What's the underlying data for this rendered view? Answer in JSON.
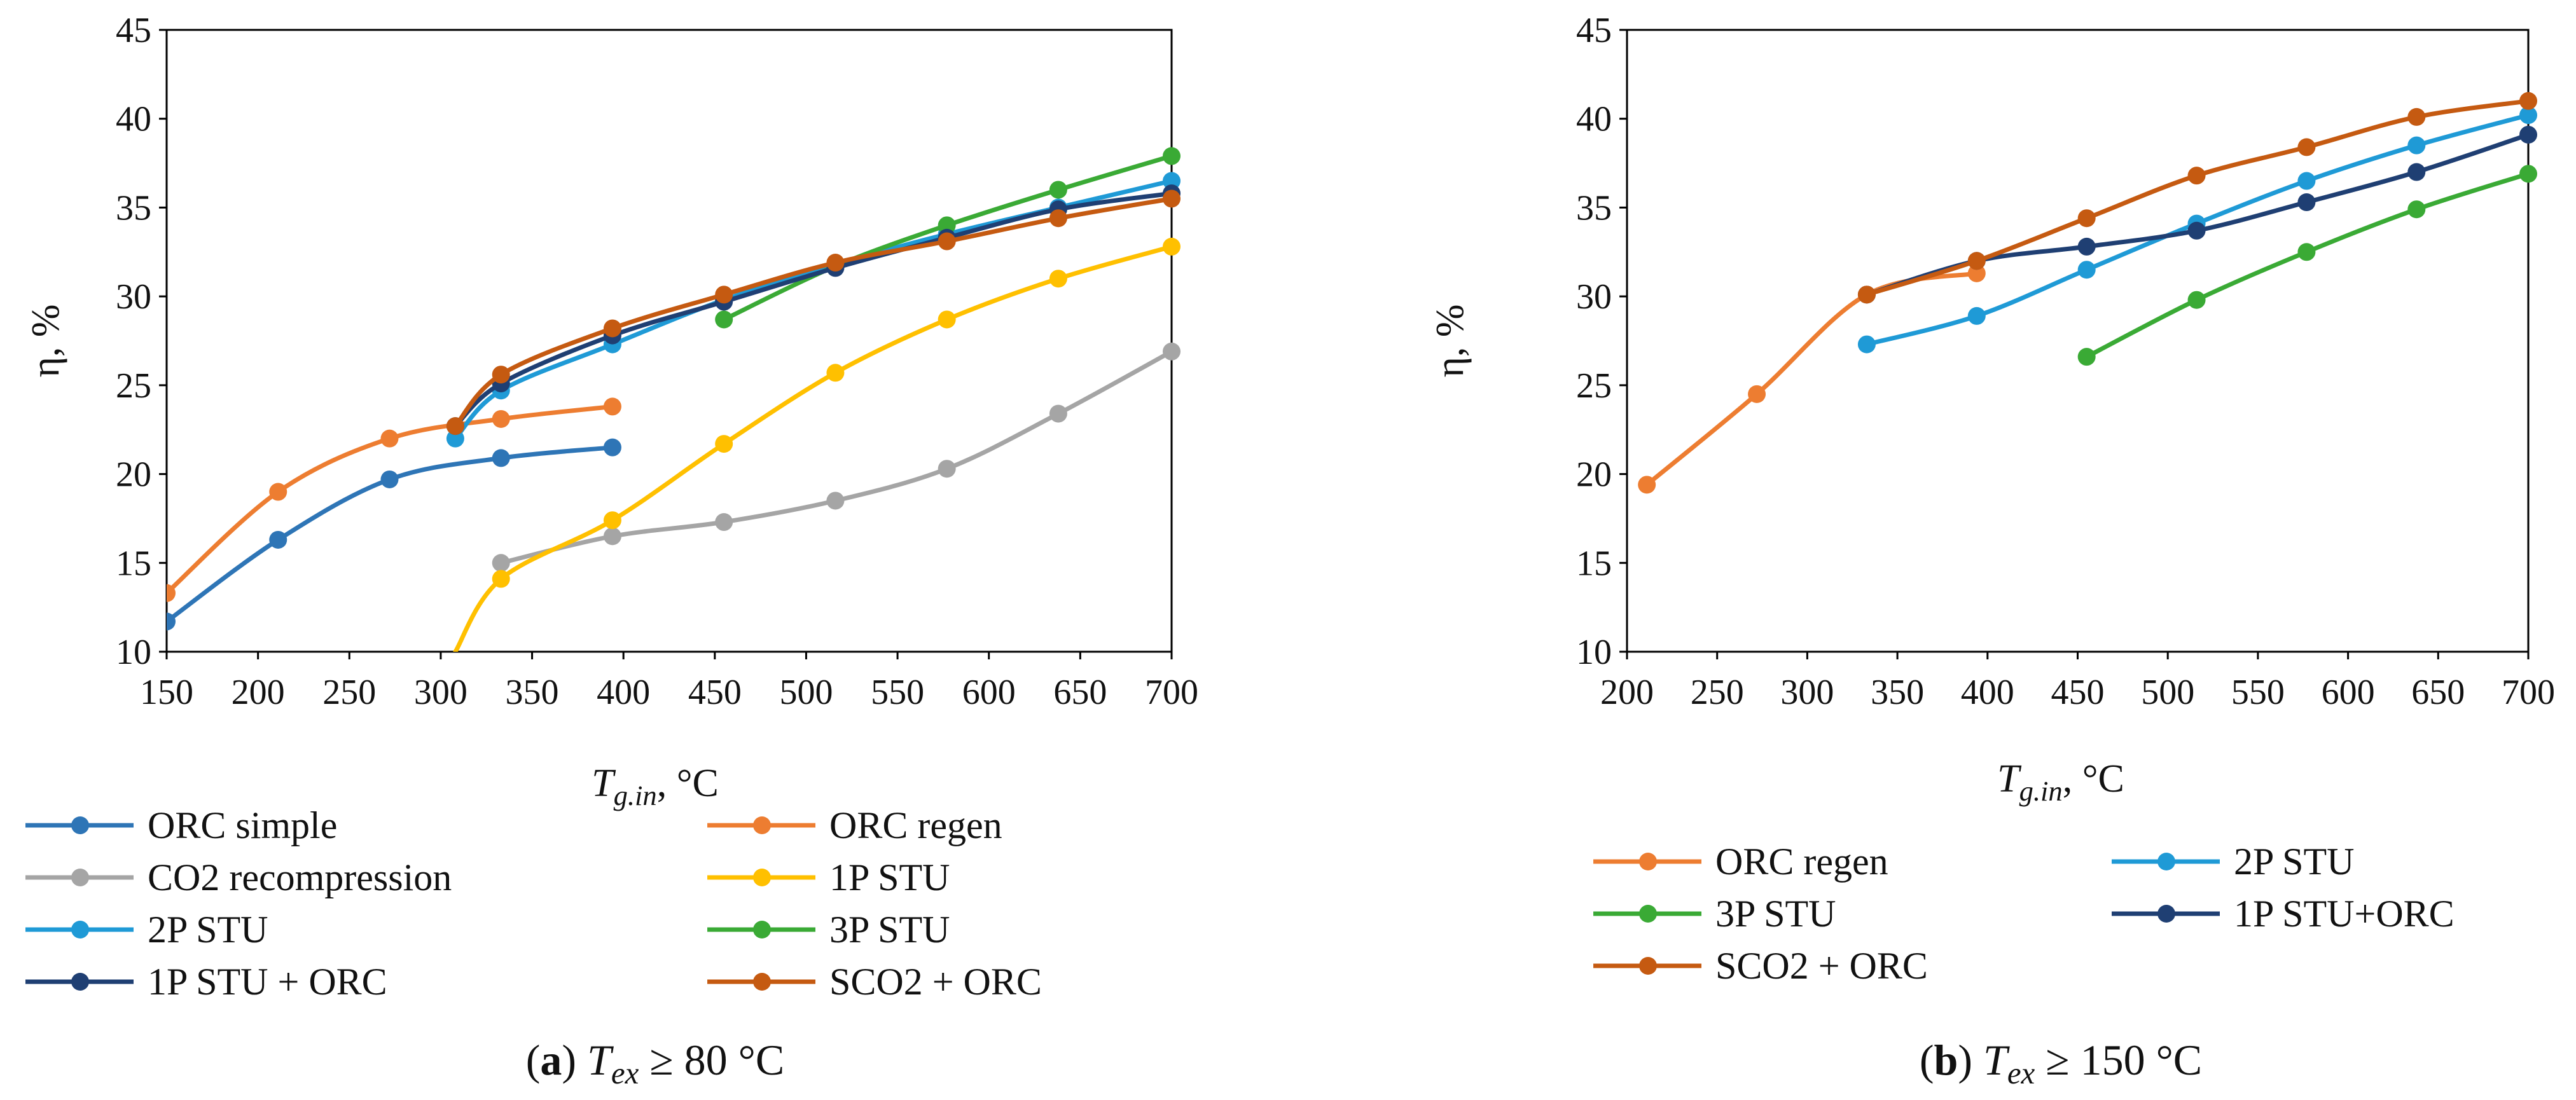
{
  "chart_data": [
    {
      "type": "line",
      "panel_label": "a",
      "caption_var": "T",
      "caption_sub": "ex",
      "caption_rest": " ≥ 80 °C",
      "xlabel_var": "T",
      "xlabel_sub": "g.in",
      "xlabel_rest": ", °C",
      "ylabel": "η, %",
      "xlim": [
        150,
        700
      ],
      "ylim": [
        10,
        45
      ],
      "xticks": [
        150,
        200,
        250,
        300,
        350,
        400,
        450,
        500,
        550,
        600,
        650,
        700
      ],
      "yticks": [
        10,
        15,
        20,
        25,
        30,
        35,
        40,
        45
      ],
      "grid": false,
      "legend_position": "bottom",
      "series": [
        {
          "name": "ORC simple",
          "color": "#2e75b6",
          "x": [
            150,
            211,
            272,
            333,
            394
          ],
          "y": [
            11.7,
            16.3,
            19.7,
            20.9,
            21.5
          ]
        },
        {
          "name": "ORC regen",
          "color": "#ed7d31",
          "x": [
            150,
            211,
            272,
            333,
            394
          ],
          "y": [
            13.3,
            19.0,
            22.0,
            23.1,
            23.8
          ]
        },
        {
          "name": "CO2 recompression",
          "color": "#a5a5a5",
          "x": [
            333,
            394,
            455,
            516,
            577,
            638,
            700
          ],
          "y": [
            15.0,
            16.5,
            17.3,
            18.5,
            20.3,
            23.4,
            26.9
          ]
        },
        {
          "name": "1P STU",
          "color": "#ffc000",
          "start_unmarked": [
            308,
            10.0
          ],
          "x": [
            333,
            394,
            455,
            516,
            577,
            638,
            700
          ],
          "y": [
            14.1,
            17.4,
            21.7,
            25.7,
            28.7,
            31.0,
            32.8
          ]
        },
        {
          "name": "2P STU",
          "color": "#1f9ad6",
          "x": [
            308,
            333,
            394,
            455,
            516,
            577,
            638,
            700
          ],
          "y": [
            22.0,
            24.7,
            27.3,
            29.8,
            31.8,
            33.5,
            35.0,
            36.5
          ]
        },
        {
          "name": "3P STU",
          "color": "#3aaa35",
          "x": [
            455,
            516,
            577,
            638,
            700
          ],
          "y": [
            28.7,
            31.7,
            34.0,
            36.0,
            37.9
          ]
        },
        {
          "name": "1P STU + ORC",
          "color": "#1f3f73",
          "x": [
            308,
            333,
            394,
            455,
            516,
            577,
            638,
            700
          ],
          "y": [
            22.7,
            25.1,
            27.8,
            29.7,
            31.6,
            33.3,
            34.9,
            35.8
          ]
        },
        {
          "name": "SCO2 + ORC",
          "color": "#c55a11",
          "x": [
            308,
            333,
            394,
            455,
            516,
            577,
            638,
            700
          ],
          "y": [
            22.7,
            25.6,
            28.2,
            30.1,
            31.9,
            33.1,
            34.4,
            35.5
          ]
        }
      ]
    },
    {
      "type": "line",
      "panel_label": "b",
      "caption_var": "T",
      "caption_sub": "ex",
      "caption_rest": " ≥ 150 °C",
      "xlabel_var": "T",
      "xlabel_sub": "g.in",
      "xlabel_rest": ", °C",
      "ylabel": "η, %",
      "xlim": [
        200,
        700
      ],
      "ylim": [
        10,
        45
      ],
      "xticks": [
        200,
        250,
        300,
        350,
        400,
        450,
        500,
        550,
        600,
        650,
        700
      ],
      "yticks": [
        10,
        15,
        20,
        25,
        30,
        35,
        40,
        45
      ],
      "grid": false,
      "legend_position": "bottom",
      "series": [
        {
          "name": "ORC regen",
          "color": "#ed7d31",
          "x": [
            211,
            272,
            333,
            394
          ],
          "y": [
            19.4,
            24.5,
            30.1,
            31.3
          ]
        },
        {
          "name": "2P STU",
          "color": "#1f9ad6",
          "x": [
            333,
            394,
            455,
            516,
            577,
            638,
            700
          ],
          "y": [
            27.3,
            28.9,
            31.5,
            34.1,
            36.5,
            38.5,
            40.2
          ]
        },
        {
          "name": "3P STU",
          "color": "#3aaa35",
          "x": [
            455,
            516,
            577,
            638,
            700
          ],
          "y": [
            26.6,
            29.8,
            32.5,
            34.9,
            36.9
          ]
        },
        {
          "name": "1P STU+ORC",
          "color": "#1f3f73",
          "x": [
            333,
            394,
            455,
            516,
            577,
            638,
            700
          ],
          "y": [
            30.1,
            32.0,
            32.8,
            33.7,
            35.3,
            37.0,
            39.1
          ]
        },
        {
          "name": "SCO2 + ORC",
          "color": "#c55a11",
          "x": [
            333,
            394,
            455,
            516,
            577,
            638,
            700
          ],
          "y": [
            30.1,
            32.0,
            34.4,
            36.8,
            38.4,
            40.1,
            41.0
          ]
        }
      ]
    }
  ]
}
